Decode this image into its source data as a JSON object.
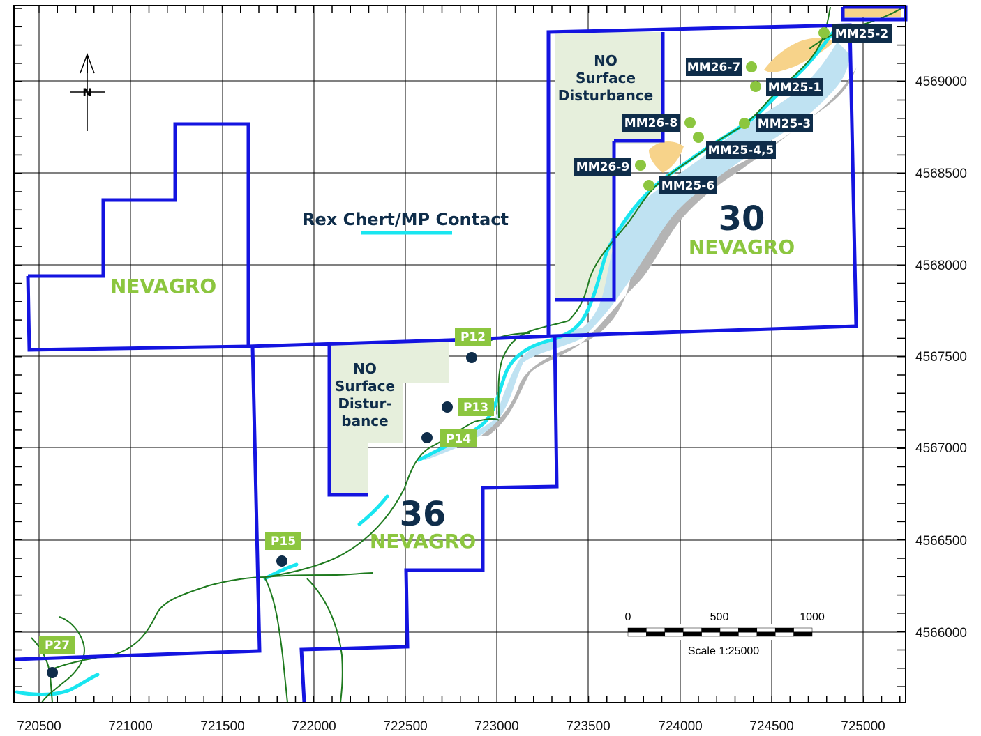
{
  "x_ticks": [
    "720500",
    "721000",
    "721500",
    "722000",
    "722500",
    "723000",
    "723500",
    "724000",
    "724500",
    "725000"
  ],
  "y_ticks": [
    "4569000",
    "4568500",
    "4568000",
    "4567500",
    "4567000",
    "4566500",
    "4566000"
  ],
  "colors": {
    "claim_boundary": "#1414e0",
    "contact_line": "#19e6f0",
    "road": "#1e7a1e",
    "no_disturbance_fill": "#e6efdc",
    "contact_fill": "#bfe2f2",
    "shadow_fill": "#b4b4b4",
    "outcrop_fill": "#f7d38a",
    "site_dark": "#0f2d4a",
    "site_green": "#8cc63f",
    "label_dark_bg": "#0f2d4a",
    "label_green_bg": "#8cc63f",
    "nevagro_text": "#8cc63f",
    "section_text": "#0f2d4a"
  },
  "legend": {
    "contact_label": "Rex Chert/MP Contact"
  },
  "north_arrow": {
    "label": "N",
    "icon": "north-arrow-icon"
  },
  "sections": [
    {
      "number": "30",
      "name": "NEVAGRO"
    },
    {
      "number": "36",
      "name": "NEVAGRO"
    },
    {
      "number": "",
      "name": "NEVAGRO"
    }
  ],
  "no_disturbance_areas": [
    {
      "lines": [
        "NO",
        "Surface",
        "Disturbance"
      ]
    },
    {
      "lines": [
        "NO",
        "Surface",
        "Distur-",
        "bance"
      ]
    }
  ],
  "drill_sites": [
    {
      "label": "MM25-2",
      "style": "dark"
    },
    {
      "label": "MM26-7",
      "style": "dark"
    },
    {
      "label": "MM25-1",
      "style": "dark"
    },
    {
      "label": "MM26-8",
      "style": "dark"
    },
    {
      "label": "MM25-3",
      "style": "dark"
    },
    {
      "label": "MM25-4,5",
      "style": "dark"
    },
    {
      "label": "MM26-9",
      "style": "dark"
    },
    {
      "label": "MM25-6",
      "style": "dark"
    }
  ],
  "p_sites": [
    {
      "label": "P12"
    },
    {
      "label": "P13"
    },
    {
      "label": "P14"
    },
    {
      "label": "P15"
    },
    {
      "label": "P27"
    }
  ],
  "scale_bar": {
    "ticks": [
      "0",
      "500",
      "1000"
    ],
    "caption": "Scale 1:25000"
  }
}
